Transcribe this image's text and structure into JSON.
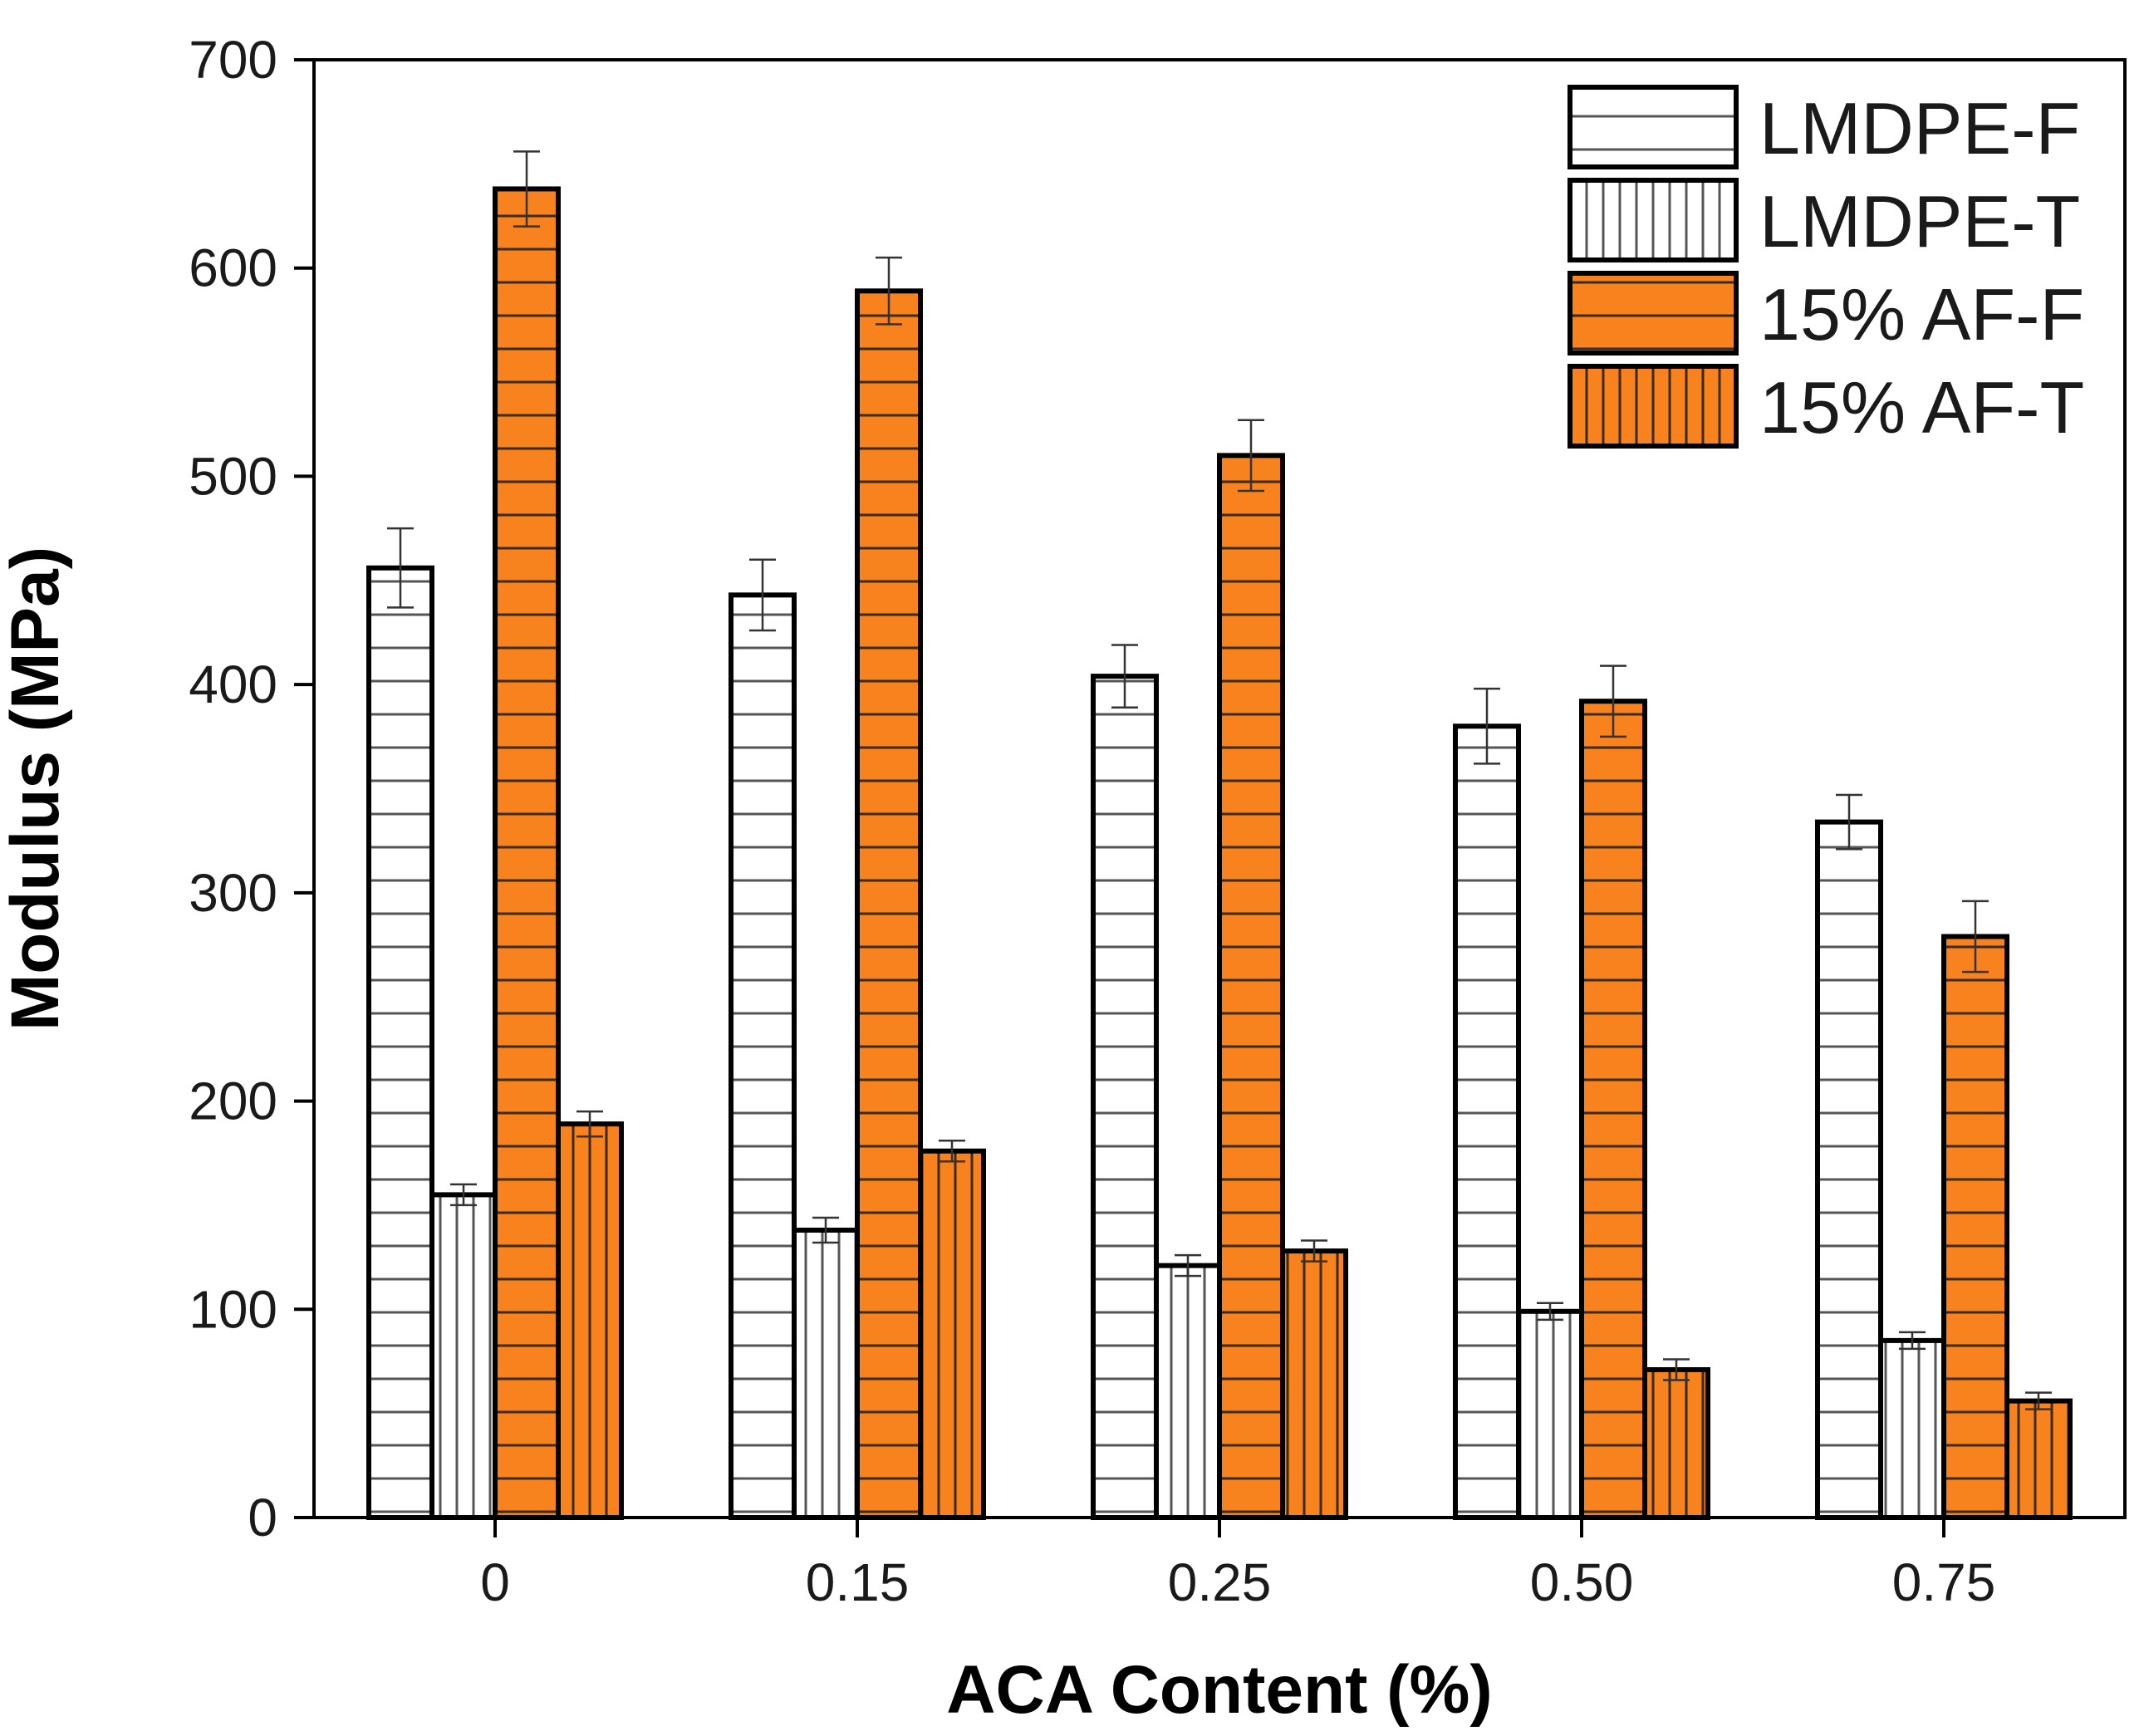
{
  "chart_data": {
    "type": "bar",
    "title": "",
    "xlabel": "ACA Content (%)",
    "ylabel": "Modulus (MPa)",
    "categories": [
      "0",
      "0.15",
      "0.25",
      "0.50",
      "0.75"
    ],
    "ylim": [
      0,
      700
    ],
    "yticks": [
      0,
      100,
      200,
      300,
      400,
      500,
      600,
      700
    ],
    "grid": false,
    "legend_position": "top-right",
    "series": [
      {
        "name": "LMDPE-F",
        "values": [
          456,
          443,
          404,
          380,
          334
        ],
        "errors": [
          19,
          17,
          15,
          18,
          13
        ],
        "fill": "#ffffff",
        "hatch": "horizontal"
      },
      {
        "name": "LMDPE-T",
        "values": [
          155,
          138,
          121,
          99,
          85
        ],
        "errors": [
          5,
          6,
          5,
          4,
          4
        ],
        "fill": "#ffffff",
        "hatch": "vertical"
      },
      {
        "name": "15% AF-F",
        "values": [
          638,
          589,
          510,
          392,
          279
        ],
        "errors": [
          18,
          16,
          17,
          17,
          17
        ],
        "fill": "#f7821e",
        "hatch": "horizontal"
      },
      {
        "name": "15% AF-T",
        "values": [
          189,
          176,
          128,
          71,
          56
        ],
        "errors": [
          6,
          5,
          5,
          5,
          4
        ],
        "fill": "#f7821e",
        "hatch": "vertical"
      }
    ]
  }
}
